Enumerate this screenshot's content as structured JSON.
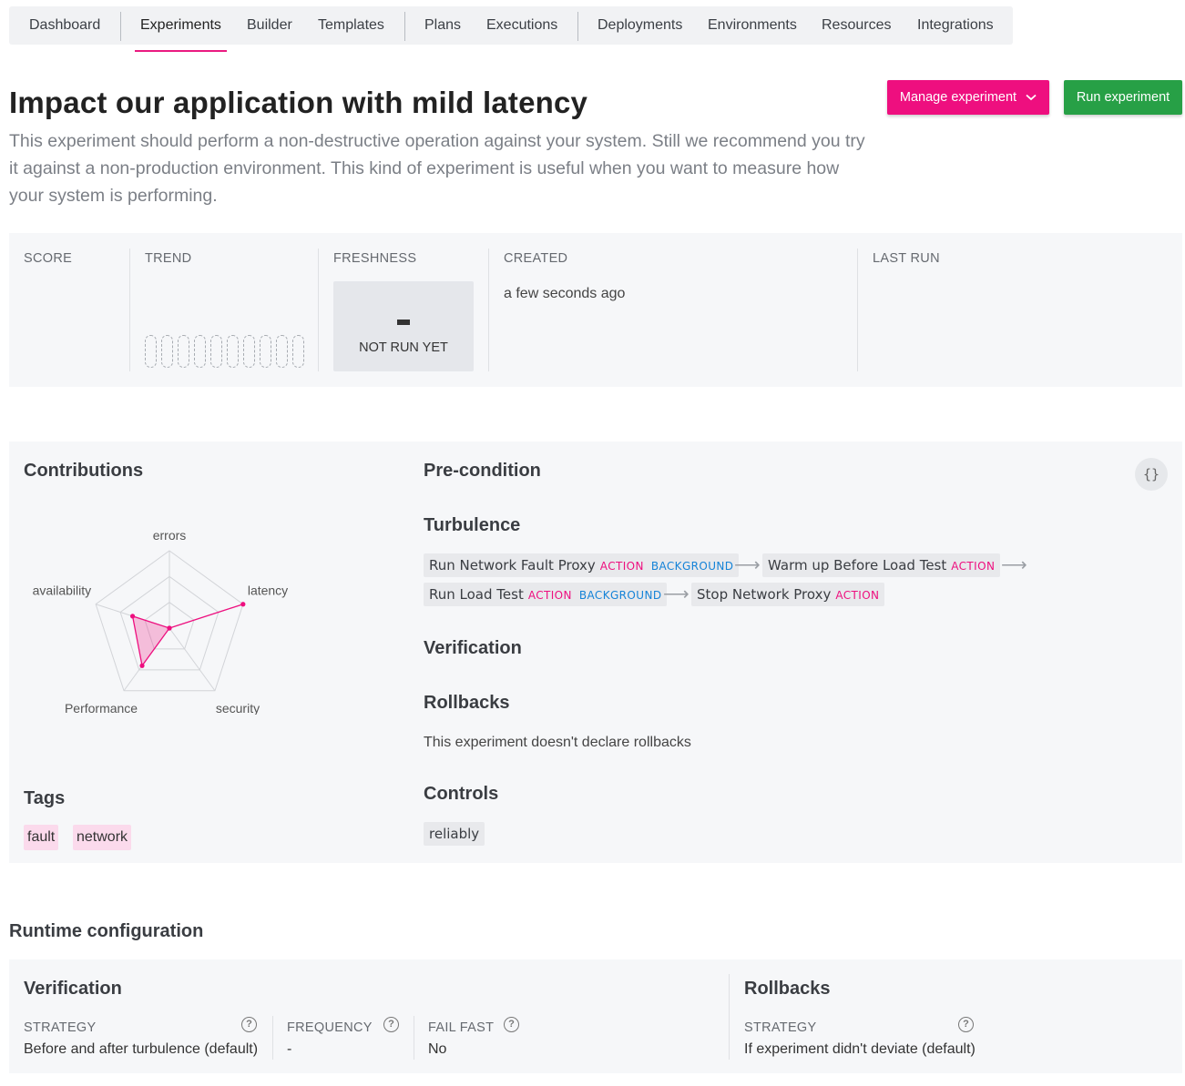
{
  "nav": {
    "items": [
      "Dashboard",
      "Experiments",
      "Builder",
      "Templates",
      "Plans",
      "Executions",
      "Deployments",
      "Environments",
      "Resources",
      "Integrations"
    ],
    "active": "Experiments"
  },
  "header": {
    "title": "Impact our application with mild latency",
    "description": "This experiment should perform a non-destructive operation against your system. Still we recommend you try it against a non-production environment. This kind of experiment is useful when you want to measure how your system is performing.",
    "manage_label": "Manage experiment",
    "run_label": "Run experiment"
  },
  "stats": {
    "score_label": "SCORE",
    "trend_label": "TREND",
    "freshness_label": "FRESHNESS",
    "freshness_value": "-",
    "freshness_text": "NOT RUN YET",
    "created_label": "CREATED",
    "created_value": "a few seconds ago",
    "last_run_label": "LAST RUN"
  },
  "contributions": {
    "title": "Contributions",
    "chart_data": {
      "type": "radar",
      "axes": [
        "errors",
        "latency",
        "security",
        "Performance",
        "availability"
      ],
      "values": [
        0.0,
        1.0,
        0.0,
        0.6,
        0.5
      ],
      "max": 1.0,
      "color": "#ee0f7f"
    }
  },
  "tags": {
    "title": "Tags",
    "items": [
      "fault",
      "network"
    ]
  },
  "precondition": {
    "title": "Pre-condition"
  },
  "json_button_label": "{}",
  "turbulence": {
    "title": "Turbulence",
    "activities": [
      {
        "name": "Run Network Fault Proxy",
        "type": "ACTION",
        "background": "BACKGROUND"
      },
      {
        "name": "Warm up Before Load Test",
        "type": "ACTION"
      },
      {
        "name": "Run Load Test",
        "type": "ACTION",
        "background": "BACKGROUND"
      },
      {
        "name": "Stop Network Proxy",
        "type": "ACTION"
      }
    ]
  },
  "verification": {
    "title": "Verification"
  },
  "rollbacks": {
    "title": "Rollbacks",
    "note": "This experiment doesn't declare rollbacks"
  },
  "controls": {
    "title": "Controls",
    "items": [
      "reliably"
    ]
  },
  "runtime": {
    "title": "Runtime configuration",
    "verification": {
      "title": "Verification",
      "strategy_label": "STRATEGY",
      "strategy_value": "Before and after turbulence (default)",
      "frequency_label": "FREQUENCY",
      "frequency_value": "-",
      "fail_fast_label": "FAIL FAST",
      "fail_fast_value": "No"
    },
    "rollbacks": {
      "title": "Rollbacks",
      "strategy_label": "STRATEGY",
      "strategy_value": "If experiment didn't deviate (default)"
    }
  },
  "icons": {
    "help": "?",
    "arrow": "⟶",
    "chevron": "chevron-down-icon"
  }
}
